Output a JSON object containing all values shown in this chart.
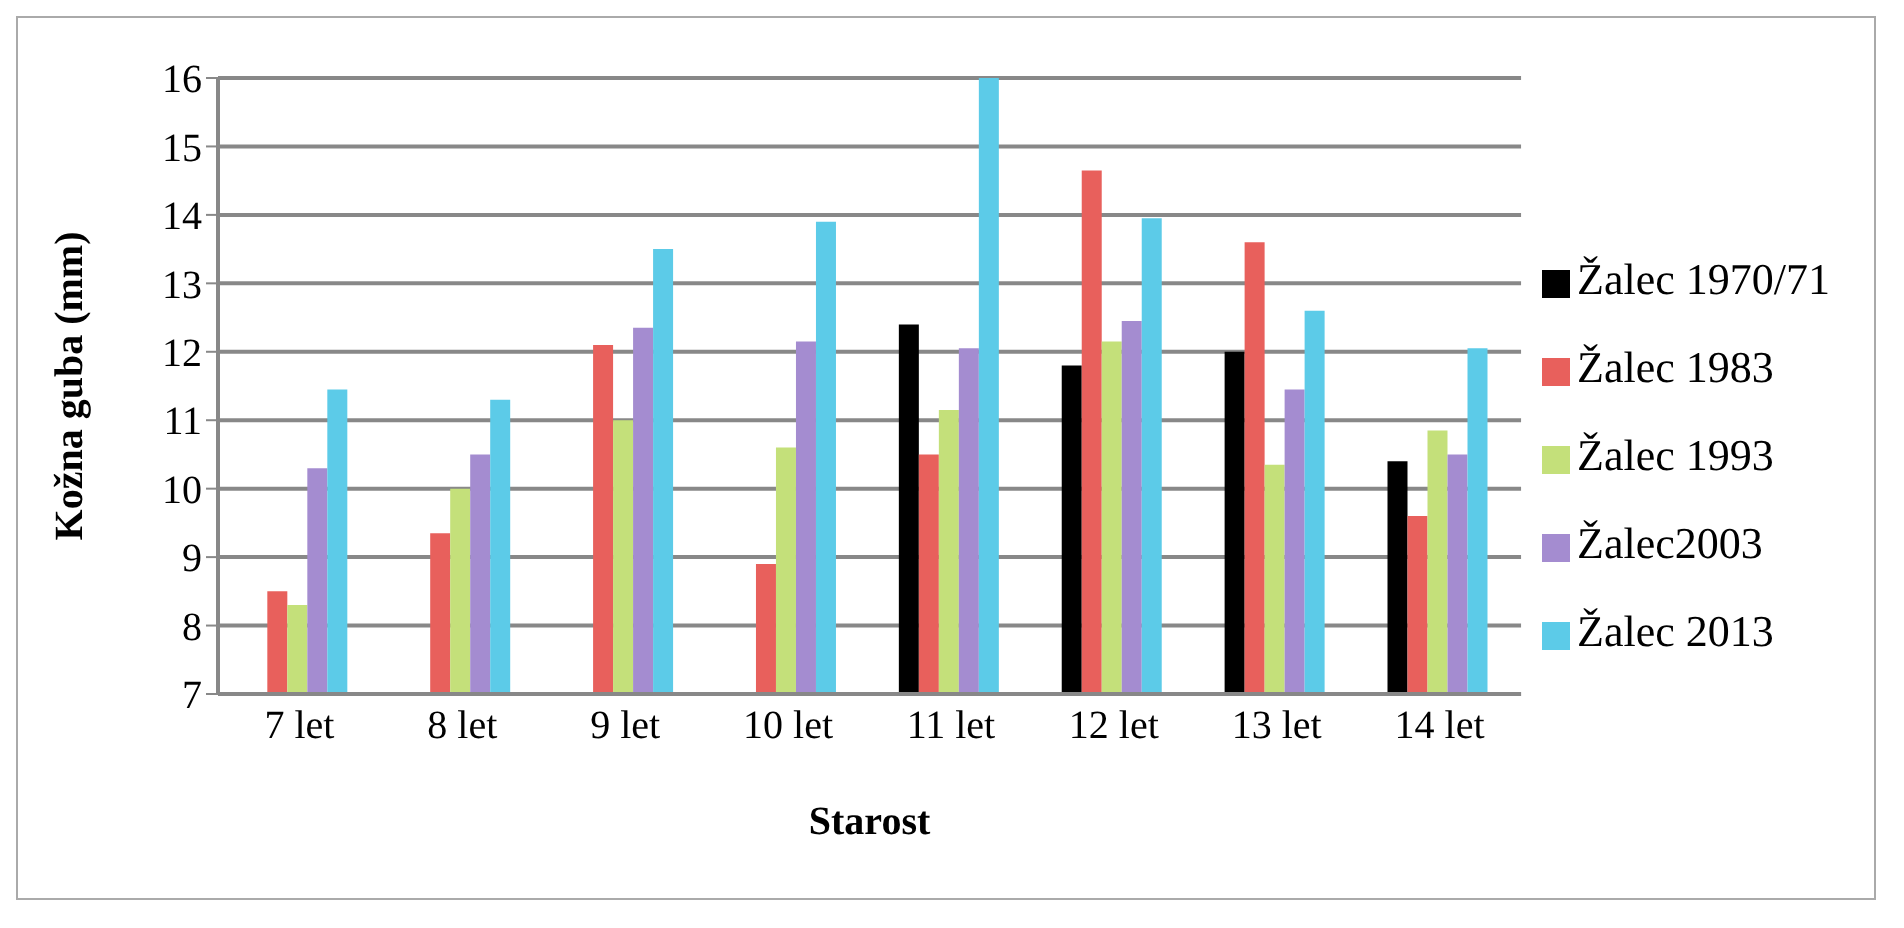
{
  "chart_data": {
    "type": "bar",
    "xlabel": "Starost",
    "ylabel": "Kožna guba (mm)",
    "categories": [
      "7 let",
      "8 let",
      "9 let",
      "10 let",
      "11 let",
      "12 let",
      "13 let",
      "14 let"
    ],
    "series": [
      {
        "name": "Žalec 1970/71",
        "color": "#000000",
        "values": [
          null,
          null,
          null,
          null,
          12.4,
          11.8,
          12.0,
          10.4
        ]
      },
      {
        "name": "Žalec 1983",
        "color": "#e8605c",
        "values": [
          8.5,
          9.35,
          12.1,
          8.9,
          10.5,
          14.65,
          13.6,
          9.6
        ]
      },
      {
        "name": "Žalec 1993",
        "color": "#c4e07a",
        "values": [
          8.3,
          10.0,
          11.0,
          10.6,
          11.15,
          12.15,
          10.35,
          10.85
        ]
      },
      {
        "name": "Žalec2003",
        "color": "#a48cd0",
        "values": [
          10.3,
          10.5,
          12.35,
          12.15,
          12.05,
          12.45,
          11.45,
          10.5
        ]
      },
      {
        "name": "Žalec 2013",
        "color": "#5ccbe8",
        "values": [
          11.45,
          11.3,
          13.5,
          13.9,
          16.0,
          13.95,
          12.6,
          12.05
        ]
      }
    ],
    "ylim": [
      7,
      16
    ],
    "yticks": [
      7,
      8,
      9,
      10,
      11,
      12,
      13,
      14,
      15,
      16
    ],
    "grid": "y",
    "legend": "right"
  }
}
